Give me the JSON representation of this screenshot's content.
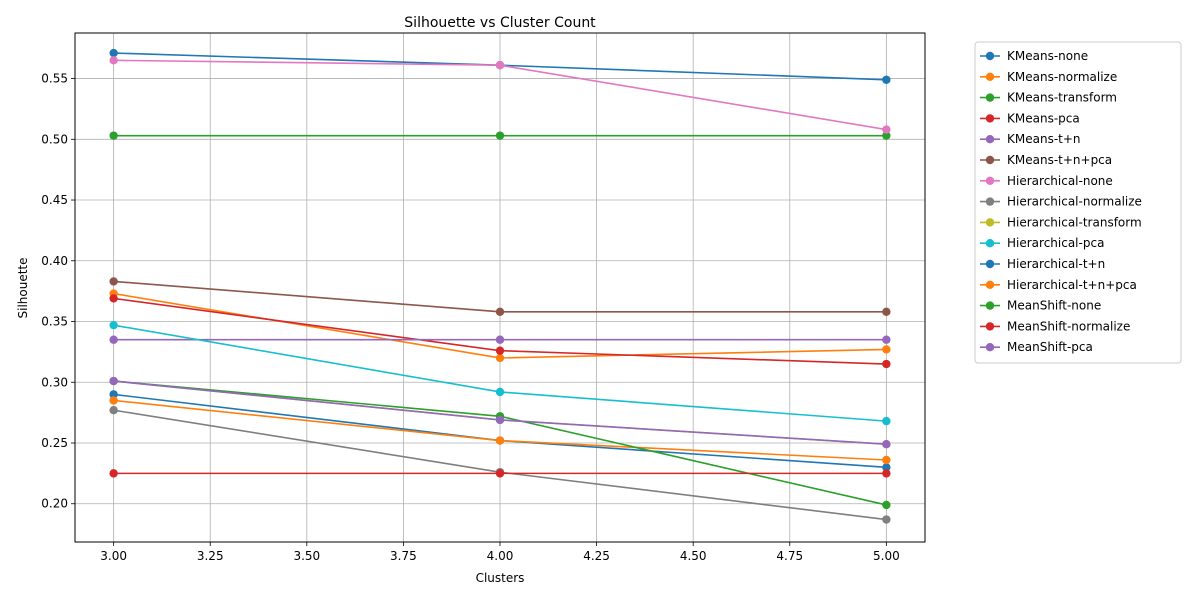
{
  "chart_data": {
    "type": "line",
    "title": "Silhouette vs Cluster Count",
    "xlabel": "Clusters",
    "ylabel": "Silhouette",
    "x": [
      3,
      4,
      5
    ],
    "xlim": [
      2.9,
      5.1
    ],
    "ylim": [
      0.1685,
      0.5875
    ],
    "xticks": [
      "3.00",
      "3.25",
      "3.50",
      "3.75",
      "4.00",
      "4.25",
      "4.50",
      "4.75",
      "5.00"
    ],
    "yticks": [
      "0.20",
      "0.25",
      "0.30",
      "0.35",
      "0.40",
      "0.45",
      "0.50",
      "0.55"
    ],
    "grid": true,
    "legend_position": "outside-right",
    "series": [
      {
        "name": "KMeans-none",
        "color": "#1f77b4",
        "values": [
          0.571,
          0.561,
          0.549
        ]
      },
      {
        "name": "KMeans-normalize",
        "color": "#ff7f0e",
        "values": [
          0.373,
          0.32,
          0.327
        ]
      },
      {
        "name": "KMeans-transform",
        "color": "#2ca02c",
        "values": [
          0.503,
          0.503,
          0.503
        ]
      },
      {
        "name": "KMeans-pca",
        "color": "#d62728",
        "values": [
          0.369,
          0.326,
          0.315
        ]
      },
      {
        "name": "KMeans-t+n",
        "color": "#9467bd",
        "values": [
          0.335,
          0.335,
          0.335
        ]
      },
      {
        "name": "KMeans-t+n+pca",
        "color": "#8c564b",
        "values": [
          0.383,
          0.358,
          0.358
        ]
      },
      {
        "name": "Hierarchical-none",
        "color": "#e377c2",
        "values": [
          0.565,
          0.561,
          0.508
        ]
      },
      {
        "name": "Hierarchical-normalize",
        "color": "#7f7f7f",
        "values": [
          0.277,
          0.226,
          0.187
        ]
      },
      {
        "name": "Hierarchical-transform",
        "color": "#bcbd22",
        "values": [
          0.301,
          0.269,
          0.249
        ]
      },
      {
        "name": "Hierarchical-pca",
        "color": "#17becf",
        "values": [
          0.347,
          0.292,
          0.268
        ]
      },
      {
        "name": "Hierarchical-t+n",
        "color": "#1f77b4",
        "values": [
          0.29,
          0.252,
          0.23
        ]
      },
      {
        "name": "Hierarchical-t+n+pca",
        "color": "#ff7f0e",
        "values": [
          0.285,
          0.252,
          0.236
        ]
      },
      {
        "name": "MeanShift-none",
        "color": "#2ca02c",
        "values": [
          0.301,
          0.272,
          0.199
        ]
      },
      {
        "name": "MeanShift-normalize",
        "color": "#d62728",
        "values": [
          0.225,
          0.225,
          0.225
        ]
      },
      {
        "name": "MeanShift-pca",
        "color": "#9467bd",
        "values": [
          0.301,
          0.269,
          0.249
        ]
      }
    ]
  }
}
